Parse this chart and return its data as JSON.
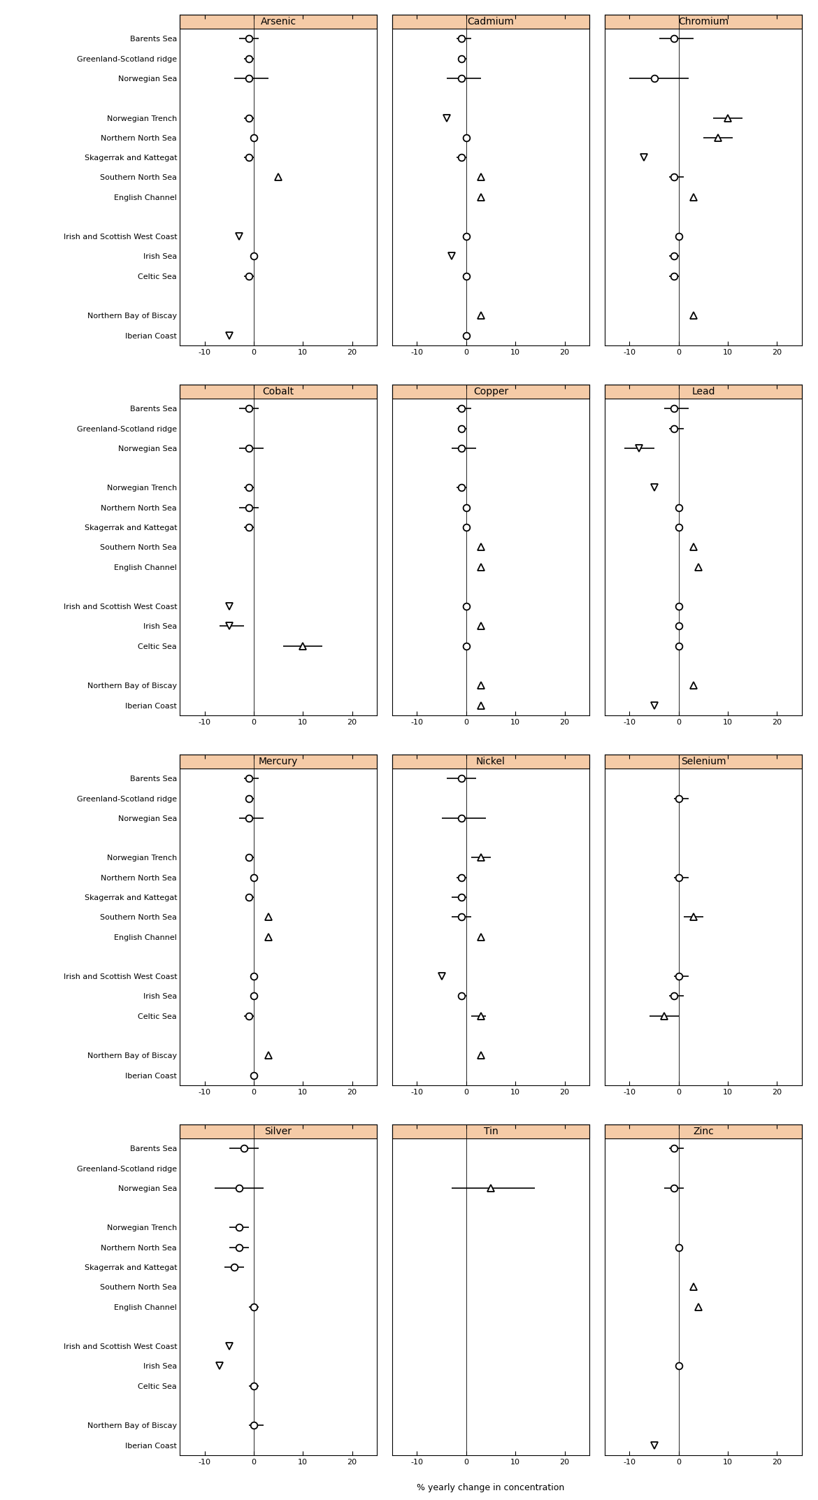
{
  "metals": [
    "Arsenic",
    "Cadmium",
    "Chromium",
    "Cobalt",
    "Copper",
    "Lead",
    "Mercury",
    "Nickel",
    "Selenium",
    "Silver",
    "Tin",
    "Zinc"
  ],
  "regions_with_gaps": [
    "Barents Sea",
    "Greenland-Scotland ridge",
    "Norwegian Sea",
    "",
    "Norwegian Trench",
    "Northern North Sea",
    "Skagerrak and Kattegat",
    "Southern North Sea",
    "English Channel",
    "",
    "Irish and Scottish West Coast",
    "Irish Sea",
    "Celtic Sea",
    "",
    "Northern Bay of Biscay",
    "Iberian Coast"
  ],
  "header_bg": "#f5cba7",
  "panel_bg": "#ffffff",
  "xlim": [
    -15,
    25
  ],
  "xticks": [
    -10,
    0,
    10,
    20
  ],
  "xlabel": "% yearly change in concentration",
  "exact_data": {
    "Arsenic": {
      "Barents Sea": {
        "val": -1,
        "lo": -3,
        "hi": 1,
        "marker": "o"
      },
      "Greenland-Scotland ridge": {
        "val": -1,
        "lo": -2,
        "hi": 0,
        "marker": "o"
      },
      "Norwegian Sea": {
        "val": -1,
        "lo": -4,
        "hi": 3,
        "marker": "o"
      },
      "Norwegian Trench": {
        "val": -1,
        "lo": -2,
        "hi": 0,
        "marker": "o"
      },
      "Northern North Sea": {
        "val": 0,
        "lo": 0,
        "hi": 0,
        "marker": "o"
      },
      "Skagerrak and Kattegat": {
        "val": -1,
        "lo": -2,
        "hi": 0,
        "marker": "o"
      },
      "Southern North Sea": {
        "val": 5,
        "lo": 5,
        "hi": 5,
        "marker": "^"
      },
      "English Channel": {
        "val": null,
        "lo": null,
        "hi": null,
        "marker": null
      },
      "Irish and Scottish West Coast": {
        "val": -3,
        "lo": -3,
        "hi": -3,
        "marker": "v"
      },
      "Irish Sea": {
        "val": 0,
        "lo": 0,
        "hi": 0,
        "marker": "o"
      },
      "Celtic Sea": {
        "val": -1,
        "lo": -2,
        "hi": 0,
        "marker": "o"
      },
      "Northern Bay of Biscay": {
        "val": null,
        "lo": null,
        "hi": null,
        "marker": null
      },
      "Iberian Coast": {
        "val": -5,
        "lo": -5,
        "hi": -5,
        "marker": "v"
      }
    },
    "Cadmium": {
      "Barents Sea": {
        "val": -1,
        "lo": -2,
        "hi": 1,
        "marker": "o"
      },
      "Greenland-Scotland ridge": {
        "val": -1,
        "lo": -1,
        "hi": 0,
        "marker": "o"
      },
      "Norwegian Sea": {
        "val": -1,
        "lo": -4,
        "hi": 3,
        "marker": "o"
      },
      "Norwegian Trench": {
        "val": -4,
        "lo": -4,
        "hi": -4,
        "marker": "v"
      },
      "Northern North Sea": {
        "val": 0,
        "lo": 0,
        "hi": 0,
        "marker": "o"
      },
      "Skagerrak and Kattegat": {
        "val": -1,
        "lo": -2,
        "hi": 0,
        "marker": "o"
      },
      "Southern North Sea": {
        "val": 3,
        "lo": 3,
        "hi": 3,
        "marker": "^"
      },
      "English Channel": {
        "val": 3,
        "lo": 3,
        "hi": 3,
        "marker": "^"
      },
      "Irish and Scottish West Coast": {
        "val": 0,
        "lo": 0,
        "hi": 0,
        "marker": "o"
      },
      "Irish Sea": {
        "val": -3,
        "lo": -3,
        "hi": -3,
        "marker": "v"
      },
      "Celtic Sea": {
        "val": 0,
        "lo": 0,
        "hi": 0,
        "marker": "o"
      },
      "Northern Bay of Biscay": {
        "val": 3,
        "lo": 3,
        "hi": 3,
        "marker": "^"
      },
      "Iberian Coast": {
        "val": 0,
        "lo": 0,
        "hi": 0,
        "marker": "o"
      }
    },
    "Chromium": {
      "Barents Sea": {
        "val": -1,
        "lo": -4,
        "hi": 3,
        "marker": "o"
      },
      "Greenland-Scotland ridge": {
        "val": null,
        "lo": null,
        "hi": null,
        "marker": null
      },
      "Norwegian Sea": {
        "val": -5,
        "lo": -10,
        "hi": 2,
        "marker": "o"
      },
      "Norwegian Trench": {
        "val": 10,
        "lo": 7,
        "hi": 13,
        "marker": "^"
      },
      "Northern North Sea": {
        "val": 8,
        "lo": 5,
        "hi": 11,
        "marker": "^"
      },
      "Skagerrak and Kattegat": {
        "val": -7,
        "lo": -7,
        "hi": -7,
        "marker": "v"
      },
      "Southern North Sea": {
        "val": -1,
        "lo": -2,
        "hi": 1,
        "marker": "o"
      },
      "English Channel": {
        "val": 3,
        "lo": 3,
        "hi": 3,
        "marker": "^"
      },
      "Irish and Scottish West Coast": {
        "val": 0,
        "lo": 0,
        "hi": 0,
        "marker": "o"
      },
      "Irish Sea": {
        "val": -1,
        "lo": -2,
        "hi": 0,
        "marker": "o"
      },
      "Celtic Sea": {
        "val": -1,
        "lo": -2,
        "hi": 0,
        "marker": "o"
      },
      "Northern Bay of Biscay": {
        "val": 3,
        "lo": 3,
        "hi": 3,
        "marker": "^"
      },
      "Iberian Coast": {
        "val": null,
        "lo": null,
        "hi": null,
        "marker": null
      }
    },
    "Cobalt": {
      "Barents Sea": {
        "val": -1,
        "lo": -3,
        "hi": 1,
        "marker": "o"
      },
      "Greenland-Scotland ridge": {
        "val": null,
        "lo": null,
        "hi": null,
        "marker": null
      },
      "Norwegian Sea": {
        "val": -1,
        "lo": -3,
        "hi": 2,
        "marker": "o"
      },
      "Norwegian Trench": {
        "val": -1,
        "lo": -2,
        "hi": 0,
        "marker": "o"
      },
      "Northern North Sea": {
        "val": -1,
        "lo": -3,
        "hi": 1,
        "marker": "o"
      },
      "Skagerrak and Kattegat": {
        "val": -1,
        "lo": -2,
        "hi": 0,
        "marker": "o"
      },
      "Southern North Sea": {
        "val": null,
        "lo": null,
        "hi": null,
        "marker": null
      },
      "English Channel": {
        "val": null,
        "lo": null,
        "hi": null,
        "marker": null
      },
      "Irish and Scottish West Coast": {
        "val": -5,
        "lo": -5,
        "hi": -5,
        "marker": "v"
      },
      "Irish Sea": {
        "val": -5,
        "lo": -7,
        "hi": -2,
        "marker": "v"
      },
      "Celtic Sea": {
        "val": 10,
        "lo": 6,
        "hi": 14,
        "marker": "^"
      },
      "Northern Bay of Biscay": {
        "val": null,
        "lo": null,
        "hi": null,
        "marker": null
      },
      "Iberian Coast": {
        "val": null,
        "lo": null,
        "hi": null,
        "marker": null
      }
    },
    "Copper": {
      "Barents Sea": {
        "val": -1,
        "lo": -2,
        "hi": 1,
        "marker": "o"
      },
      "Greenland-Scotland ridge": {
        "val": -1,
        "lo": -1,
        "hi": 0,
        "marker": "o"
      },
      "Norwegian Sea": {
        "val": -1,
        "lo": -3,
        "hi": 2,
        "marker": "o"
      },
      "Norwegian Trench": {
        "val": -1,
        "lo": -2,
        "hi": 0,
        "marker": "o"
      },
      "Northern North Sea": {
        "val": 0,
        "lo": 0,
        "hi": 0,
        "marker": "o"
      },
      "Skagerrak and Kattegat": {
        "val": 0,
        "lo": 0,
        "hi": 0,
        "marker": "o"
      },
      "Southern North Sea": {
        "val": 3,
        "lo": 3,
        "hi": 3,
        "marker": "^"
      },
      "English Channel": {
        "val": 3,
        "lo": 3,
        "hi": 3,
        "marker": "^"
      },
      "Irish and Scottish West Coast": {
        "val": 0,
        "lo": 0,
        "hi": 0,
        "marker": "o"
      },
      "Irish Sea": {
        "val": 3,
        "lo": 3,
        "hi": 3,
        "marker": "^"
      },
      "Celtic Sea": {
        "val": 0,
        "lo": 0,
        "hi": 0,
        "marker": "o"
      },
      "Northern Bay of Biscay": {
        "val": 3,
        "lo": 3,
        "hi": 3,
        "marker": "^"
      },
      "Iberian Coast": {
        "val": 3,
        "lo": 3,
        "hi": 3,
        "marker": "^"
      }
    },
    "Lead": {
      "Barents Sea": {
        "val": -1,
        "lo": -3,
        "hi": 2,
        "marker": "o"
      },
      "Greenland-Scotland ridge": {
        "val": -1,
        "lo": -2,
        "hi": 1,
        "marker": "o"
      },
      "Norwegian Sea": {
        "val": -8,
        "lo": -11,
        "hi": -5,
        "marker": "v"
      },
      "Norwegian Trench": {
        "val": -5,
        "lo": -5,
        "hi": -5,
        "marker": "v"
      },
      "Northern North Sea": {
        "val": 0,
        "lo": 0,
        "hi": 0,
        "marker": "o"
      },
      "Skagerrak and Kattegat": {
        "val": 0,
        "lo": 0,
        "hi": 0,
        "marker": "o"
      },
      "Southern North Sea": {
        "val": 3,
        "lo": 3,
        "hi": 3,
        "marker": "^"
      },
      "English Channel": {
        "val": 4,
        "lo": 4,
        "hi": 4,
        "marker": "^"
      },
      "Irish and Scottish West Coast": {
        "val": 0,
        "lo": 0,
        "hi": 0,
        "marker": "o"
      },
      "Irish Sea": {
        "val": 0,
        "lo": 0,
        "hi": 0,
        "marker": "o"
      },
      "Celtic Sea": {
        "val": 0,
        "lo": 0,
        "hi": 0,
        "marker": "o"
      },
      "Northern Bay of Biscay": {
        "val": 3,
        "lo": 3,
        "hi": 3,
        "marker": "^"
      },
      "Iberian Coast": {
        "val": -5,
        "lo": -5,
        "hi": -5,
        "marker": "v"
      }
    },
    "Mercury": {
      "Barents Sea": {
        "val": -1,
        "lo": -2,
        "hi": 1,
        "marker": "o"
      },
      "Greenland-Scotland ridge": {
        "val": -1,
        "lo": -1,
        "hi": 0,
        "marker": "o"
      },
      "Norwegian Sea": {
        "val": -1,
        "lo": -3,
        "hi": 2,
        "marker": "o"
      },
      "Norwegian Trench": {
        "val": -1,
        "lo": -1,
        "hi": 0,
        "marker": "o"
      },
      "Northern North Sea": {
        "val": 0,
        "lo": 0,
        "hi": 0,
        "marker": "o"
      },
      "Skagerrak and Kattegat": {
        "val": -1,
        "lo": -1,
        "hi": 0,
        "marker": "o"
      },
      "Southern North Sea": {
        "val": 3,
        "lo": 3,
        "hi": 3,
        "marker": "^"
      },
      "English Channel": {
        "val": 3,
        "lo": 3,
        "hi": 3,
        "marker": "^"
      },
      "Irish and Scottish West Coast": {
        "val": 0,
        "lo": 0,
        "hi": 0,
        "marker": "o"
      },
      "Irish Sea": {
        "val": 0,
        "lo": 0,
        "hi": 0,
        "marker": "o"
      },
      "Celtic Sea": {
        "val": -1,
        "lo": -2,
        "hi": 0,
        "marker": "o"
      },
      "Northern Bay of Biscay": {
        "val": 3,
        "lo": 3,
        "hi": 3,
        "marker": "^"
      },
      "Iberian Coast": {
        "val": 0,
        "lo": 0,
        "hi": 0,
        "marker": "o"
      }
    },
    "Nickel": {
      "Barents Sea": {
        "val": -1,
        "lo": -4,
        "hi": 2,
        "marker": "o"
      },
      "Greenland-Scotland ridge": {
        "val": null,
        "lo": null,
        "hi": null,
        "marker": null
      },
      "Norwegian Sea": {
        "val": -1,
        "lo": -5,
        "hi": 4,
        "marker": "o"
      },
      "Norwegian Trench": {
        "val": 3,
        "lo": 1,
        "hi": 5,
        "marker": "^"
      },
      "Northern North Sea": {
        "val": -1,
        "lo": -2,
        "hi": 0,
        "marker": "o"
      },
      "Skagerrak and Kattegat": {
        "val": -1,
        "lo": -3,
        "hi": 0,
        "marker": "o"
      },
      "Southern North Sea": {
        "val": -1,
        "lo": -3,
        "hi": 1,
        "marker": "o"
      },
      "English Channel": {
        "val": 3,
        "lo": 3,
        "hi": 3,
        "marker": "^"
      },
      "Irish and Scottish West Coast": {
        "val": -5,
        "lo": -5,
        "hi": -5,
        "marker": "v"
      },
      "Irish Sea": {
        "val": -1,
        "lo": -1,
        "hi": 0,
        "marker": "o"
      },
      "Celtic Sea": {
        "val": 3,
        "lo": 1,
        "hi": 4,
        "marker": "^"
      },
      "Northern Bay of Biscay": {
        "val": 3,
        "lo": 3,
        "hi": 3,
        "marker": "^"
      },
      "Iberian Coast": {
        "val": null,
        "lo": null,
        "hi": null,
        "marker": null
      }
    },
    "Selenium": {
      "Barents Sea": {
        "val": null,
        "lo": null,
        "hi": null,
        "marker": null
      },
      "Greenland-Scotland ridge": {
        "val": 0,
        "lo": -1,
        "hi": 2,
        "marker": "o"
      },
      "Norwegian Sea": {
        "val": null,
        "lo": null,
        "hi": null,
        "marker": null
      },
      "Norwegian Trench": {
        "val": null,
        "lo": null,
        "hi": null,
        "marker": null
      },
      "Northern North Sea": {
        "val": 0,
        "lo": -1,
        "hi": 2,
        "marker": "o"
      },
      "Skagerrak and Kattegat": {
        "val": null,
        "lo": null,
        "hi": null,
        "marker": null
      },
      "Southern North Sea": {
        "val": 3,
        "lo": 1,
        "hi": 5,
        "marker": "^"
      },
      "English Channel": {
        "val": null,
        "lo": null,
        "hi": null,
        "marker": null
      },
      "Irish and Scottish West Coast": {
        "val": 0,
        "lo": -1,
        "hi": 2,
        "marker": "o"
      },
      "Irish Sea": {
        "val": -1,
        "lo": -2,
        "hi": 1,
        "marker": "o"
      },
      "Celtic Sea": {
        "val": -3,
        "lo": -6,
        "hi": 0,
        "marker": "^"
      },
      "Northern Bay of Biscay": {
        "val": null,
        "lo": null,
        "hi": null,
        "marker": null
      },
      "Iberian Coast": {
        "val": null,
        "lo": null,
        "hi": null,
        "marker": null
      }
    },
    "Silver": {
      "Barents Sea": {
        "val": -2,
        "lo": -5,
        "hi": 1,
        "marker": "o"
      },
      "Greenland-Scotland ridge": {
        "val": null,
        "lo": null,
        "hi": null,
        "marker": null
      },
      "Norwegian Sea": {
        "val": -3,
        "lo": -8,
        "hi": 2,
        "marker": "o"
      },
      "Norwegian Trench": {
        "val": -3,
        "lo": -5,
        "hi": -1,
        "marker": "o"
      },
      "Northern North Sea": {
        "val": -3,
        "lo": -5,
        "hi": -1,
        "marker": "o"
      },
      "Skagerrak and Kattegat": {
        "val": -4,
        "lo": -6,
        "hi": -2,
        "marker": "o"
      },
      "Southern North Sea": {
        "val": null,
        "lo": null,
        "hi": null,
        "marker": null
      },
      "English Channel": {
        "val": 0,
        "lo": -1,
        "hi": 1,
        "marker": "o"
      },
      "Irish and Scottish West Coast": {
        "val": -5,
        "lo": -5,
        "hi": -5,
        "marker": "v"
      },
      "Irish Sea": {
        "val": -7,
        "lo": -7,
        "hi": -7,
        "marker": "v"
      },
      "Celtic Sea": {
        "val": 0,
        "lo": -1,
        "hi": 1,
        "marker": "o"
      },
      "Northern Bay of Biscay": {
        "val": 0,
        "lo": -1,
        "hi": 2,
        "marker": "o"
      },
      "Iberian Coast": {
        "val": null,
        "lo": null,
        "hi": null,
        "marker": null
      }
    },
    "Tin": {
      "Barents Sea": {
        "val": null,
        "lo": null,
        "hi": null,
        "marker": null
      },
      "Greenland-Scotland ridge": {
        "val": null,
        "lo": null,
        "hi": null,
        "marker": null
      },
      "Norwegian Sea": {
        "val": 5,
        "lo": -3,
        "hi": 14,
        "marker": "^"
      },
      "Norwegian Trench": {
        "val": null,
        "lo": null,
        "hi": null,
        "marker": null
      },
      "Northern North Sea": {
        "val": null,
        "lo": null,
        "hi": null,
        "marker": null
      },
      "Skagerrak and Kattegat": {
        "val": null,
        "lo": null,
        "hi": null,
        "marker": null
      },
      "Southern North Sea": {
        "val": null,
        "lo": null,
        "hi": null,
        "marker": null
      },
      "English Channel": {
        "val": null,
        "lo": null,
        "hi": null,
        "marker": null
      },
      "Irish and Scottish West Coast": {
        "val": null,
        "lo": null,
        "hi": null,
        "marker": null
      },
      "Irish Sea": {
        "val": null,
        "lo": null,
        "hi": null,
        "marker": null
      },
      "Celtic Sea": {
        "val": null,
        "lo": null,
        "hi": null,
        "marker": null
      },
      "Northern Bay of Biscay": {
        "val": null,
        "lo": null,
        "hi": null,
        "marker": null
      },
      "Iberian Coast": {
        "val": null,
        "lo": null,
        "hi": null,
        "marker": null
      }
    },
    "Zinc": {
      "Barents Sea": {
        "val": -1,
        "lo": -2,
        "hi": 1,
        "marker": "o"
      },
      "Greenland-Scotland ridge": {
        "val": null,
        "lo": null,
        "hi": null,
        "marker": null
      },
      "Norwegian Sea": {
        "val": -1,
        "lo": -3,
        "hi": 1,
        "marker": "o"
      },
      "Norwegian Trench": {
        "val": null,
        "lo": null,
        "hi": null,
        "marker": null
      },
      "Northern North Sea": {
        "val": 0,
        "lo": 0,
        "hi": 0,
        "marker": "o"
      },
      "Skagerrak and Kattegat": {
        "val": null,
        "lo": null,
        "hi": null,
        "marker": null
      },
      "Southern North Sea": {
        "val": 3,
        "lo": 3,
        "hi": 3,
        "marker": "^"
      },
      "English Channel": {
        "val": 4,
        "lo": 4,
        "hi": 4,
        "marker": "^"
      },
      "Irish and Scottish West Coast": {
        "val": null,
        "lo": null,
        "hi": null,
        "marker": null
      },
      "Irish Sea": {
        "val": 0,
        "lo": 0,
        "hi": 0,
        "marker": "o"
      },
      "Celtic Sea": {
        "val": null,
        "lo": null,
        "hi": null,
        "marker": null
      },
      "Northern Bay of Biscay": {
        "val": null,
        "lo": null,
        "hi": null,
        "marker": null
      },
      "Iberian Coast": {
        "val": -5,
        "lo": -5,
        "hi": -5,
        "marker": "v"
      }
    }
  }
}
